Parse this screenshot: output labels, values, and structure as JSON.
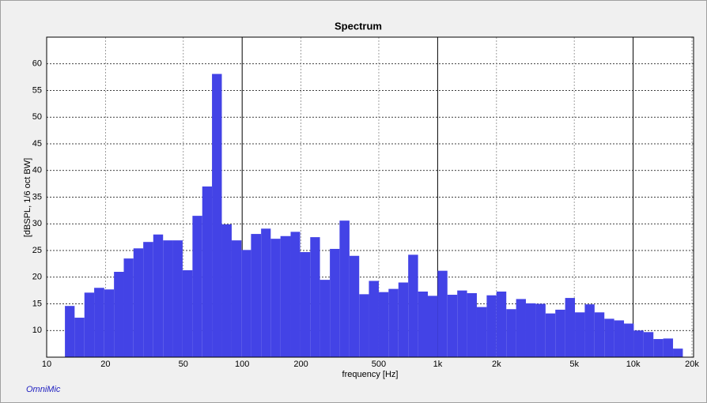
{
  "chart_data": {
    "type": "histogram",
    "title": "Spectrum",
    "x_label": "frequency [Hz]",
    "y_label": "[dBSPL, 1/6 oct BW]",
    "footer": "OmniMic",
    "bins": [
      12.4,
      13.9,
      15.6,
      17.5,
      19.7,
      22.1,
      24.8,
      27.8,
      31.2,
      35.1,
      39.4,
      44.2,
      49.6,
      55.7,
      62.5,
      70.1,
      78.7,
      88.4,
      99.2,
      111,
      125,
      140,
      157,
      177,
      198,
      223,
      250,
      281,
      315,
      354,
      397,
      445,
      500,
      561,
      630,
      707,
      794,
      891,
      1000,
      1122,
      1260,
      1414,
      1587,
      1782,
      2000,
      2245,
      2520,
      2828,
      3175,
      3564,
      4000,
      4490,
      5040,
      5657,
      6350,
      7127,
      8000,
      8980,
      10079,
      11314,
      12699,
      14254,
      16000,
      17959
    ],
    "values": [
      14.6,
      12.4,
      17.1,
      18.0,
      17.7,
      21.0,
      23.5,
      25.4,
      26.6,
      28.0,
      26.9,
      26.9,
      21.3,
      31.5,
      37.0,
      58.1,
      29.9,
      26.9,
      25.1,
      28.1,
      29.1,
      27.2,
      27.7,
      28.5,
      24.7,
      27.5,
      19.5,
      25.3,
      30.6,
      24.0,
      16.8,
      19.3,
      17.2,
      17.8,
      19.0,
      24.2,
      17.3,
      16.5,
      21.2,
      16.7,
      17.5,
      17.0,
      14.4,
      16.6,
      17.3,
      14.0,
      15.9,
      15.1,
      15.0,
      13.2,
      13.9,
      16.1,
      13.4,
      14.9,
      13.4,
      12.2,
      11.9,
      11.3,
      10.0,
      9.7,
      8.4,
      8.5,
      6.6
    ],
    "color": "#4343e6",
    "xlim": [
      10,
      20000
    ],
    "x_log": true,
    "xticks": [
      10,
      20,
      50,
      100,
      200,
      500,
      {
        "value": 1000,
        "label": "1k"
      },
      {
        "value": 2000,
        "label": "2k"
      },
      {
        "value": 5000,
        "label": "5k"
      },
      {
        "value": 10000,
        "label": "10k"
      },
      {
        "value": 20000,
        "label": "20k"
      }
    ],
    "ylim": [
      5,
      65
    ],
    "yticks": [
      10,
      15,
      20,
      25,
      30,
      35,
      40,
      45,
      50,
      55,
      60
    ],
    "grid": true
  }
}
